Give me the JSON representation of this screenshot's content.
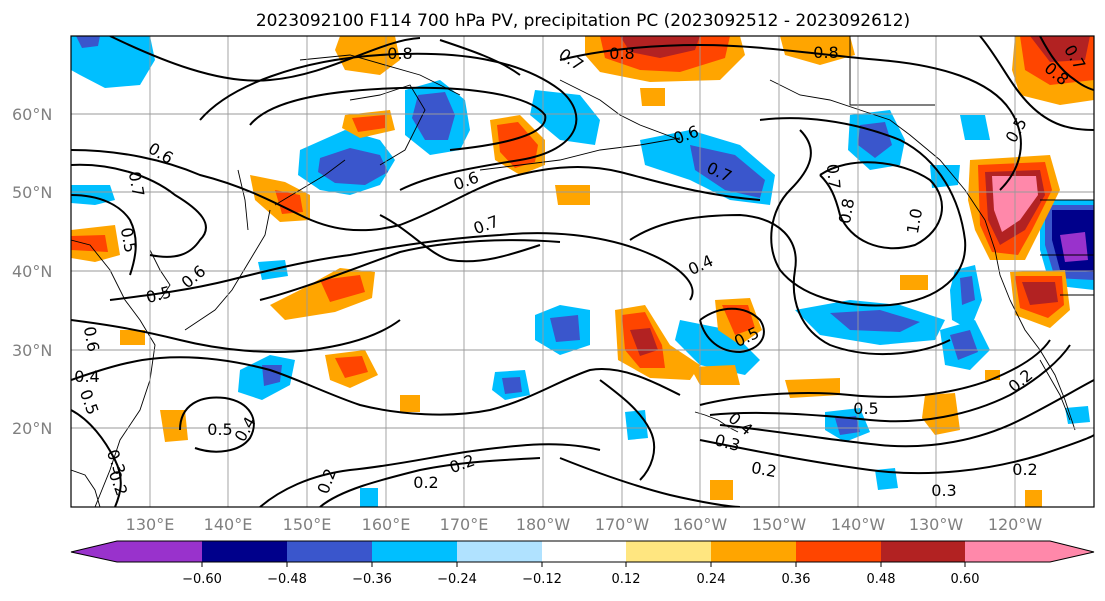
{
  "title": "2023092100 F114 700 hPa PV, precipitation PC (2023092512 - 2023092612)",
  "lat_labels": [
    "60°N",
    "50°N",
    "40°N",
    "30°N",
    "20°N"
  ],
  "lon_labels": [
    "130°E",
    "140°E",
    "150°E",
    "160°E",
    "170°E",
    "180°W",
    "170°W",
    "160°W",
    "150°W",
    "140°W",
    "130°W",
    "120°W"
  ],
  "colorbar": {
    "ticks": [
      "−0.60",
      "−0.48",
      "−0.36",
      "−0.24",
      "−0.12",
      "0.12",
      "0.24",
      "0.36",
      "0.48",
      "0.60"
    ],
    "colors": [
      "#9932cc",
      "#00008b",
      "#3a56cc",
      "#00bfff",
      "#b0e2ff",
      "#ffffff",
      "#ffe680",
      "#ffa500",
      "#ff4500",
      "#b22222",
      "#ff88aa"
    ]
  },
  "contour_labels": [
    "0.8",
    "0.7",
    "0.8",
    "0.8",
    "0.8",
    "0.6",
    "0.6",
    "0.7",
    "0.7",
    "0.7",
    "0.6",
    "0.5",
    "0.5",
    "0.6",
    "0.5",
    "0.4",
    "0.4",
    "0.5",
    "0.4",
    "0.3",
    "0.5",
    "0.4",
    "0.2",
    "0.2",
    "0.2",
    "0.7",
    "0.8",
    "1.0",
    "0.5",
    "0.5",
    "0.3",
    "0.2",
    "0.2",
    "0.2",
    "0.3",
    "0.2",
    "0.6",
    "0.7"
  ]
}
